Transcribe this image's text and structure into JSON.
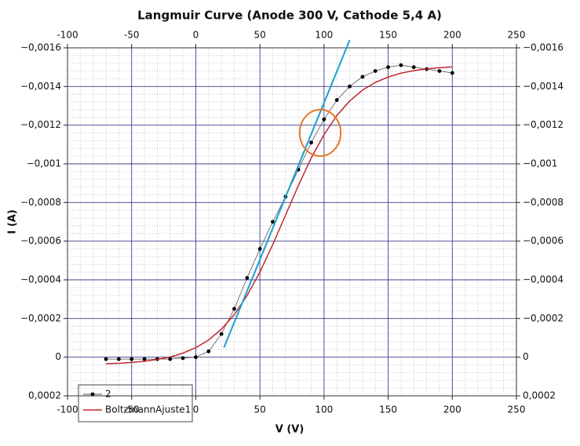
{
  "chart_data": {
    "type": "line",
    "title": "Langmuir Curve (Anode 300 V, Cathode 5,4 A)",
    "x_label": "V (V)",
    "y_label": "I (A)",
    "x": [
      -70,
      -60,
      -50,
      -40,
      -30,
      -20,
      -10,
      0,
      10,
      20,
      30,
      40,
      50,
      60,
      70,
      80,
      90,
      100,
      110,
      120,
      130,
      140,
      150,
      160,
      170,
      180,
      190,
      200
    ],
    "series": [
      {
        "name": "2",
        "color": "#000000",
        "line_color": "#555555",
        "marker": true,
        "values": [
          1e-05,
          1e-05,
          1e-05,
          1e-05,
          1e-05,
          1e-05,
          5e-06,
          0,
          -3e-05,
          -0.00012,
          -0.00025,
          -0.00041,
          -0.00056,
          -0.0007,
          -0.00083,
          -0.00097,
          -0.00111,
          -0.00123,
          -0.00133,
          -0.0014,
          -0.00145,
          -0.00148,
          -0.0015,
          -0.00151,
          -0.0015,
          -0.00149,
          -0.00148,
          -0.00147
        ]
      },
      {
        "name": "BoltzmannAjuste1",
        "color": "#c0282d",
        "marker": false,
        "values": [
          3.4e-05,
          3.2e-05,
          2.7e-05,
          2.1e-05,
          1.2e-05,
          -1e-06,
          -2.1e-05,
          -4.9e-05,
          -8.9e-05,
          -0.000145,
          -0.00022,
          -0.000319,
          -0.00044,
          -0.000582,
          -0.000735,
          -0.000888,
          -0.00103,
          -0.001151,
          -0.00125,
          -0.001325,
          -0.001381,
          -0.001421,
          -0.001449,
          -0.001469,
          -0.001482,
          -0.001491,
          -0.001497,
          -0.001501
        ]
      }
    ],
    "tangent_line": {
      "x": [
        22,
        120
      ],
      "values": [
        -5e-05,
        -0.00164
      ],
      "color": "#1b9fd0"
    },
    "ellipse": {
      "cx": 97,
      "cy": -0.00116,
      "rx": 16,
      "ry": 0.00012,
      "color": "#e87722"
    },
    "xlim": [
      -100,
      250
    ],
    "xticks": [
      -100,
      -50,
      0,
      50,
      100,
      150,
      200,
      250
    ],
    "ylim": [
      0.0002,
      -0.0016
    ],
    "yticks": [
      {
        "value": -0.0016,
        "label": "−0,0016"
      },
      {
        "value": -0.0014,
        "label": "−0,0014"
      },
      {
        "value": -0.0012,
        "label": "−0,0012"
      },
      {
        "value": -0.001,
        "label": "−0,001"
      },
      {
        "value": -0.0008,
        "label": "−0,0008"
      },
      {
        "value": -0.0006,
        "label": "−0,0006"
      },
      {
        "value": -0.0004,
        "label": "−0,0004"
      },
      {
        "value": -0.0002,
        "label": "−0,0002"
      },
      0,
      {
        "value": 0.0002,
        "label": "0,0002"
      }
    ],
    "grid": true,
    "minor_grid": 5,
    "legend": "lower left"
  }
}
